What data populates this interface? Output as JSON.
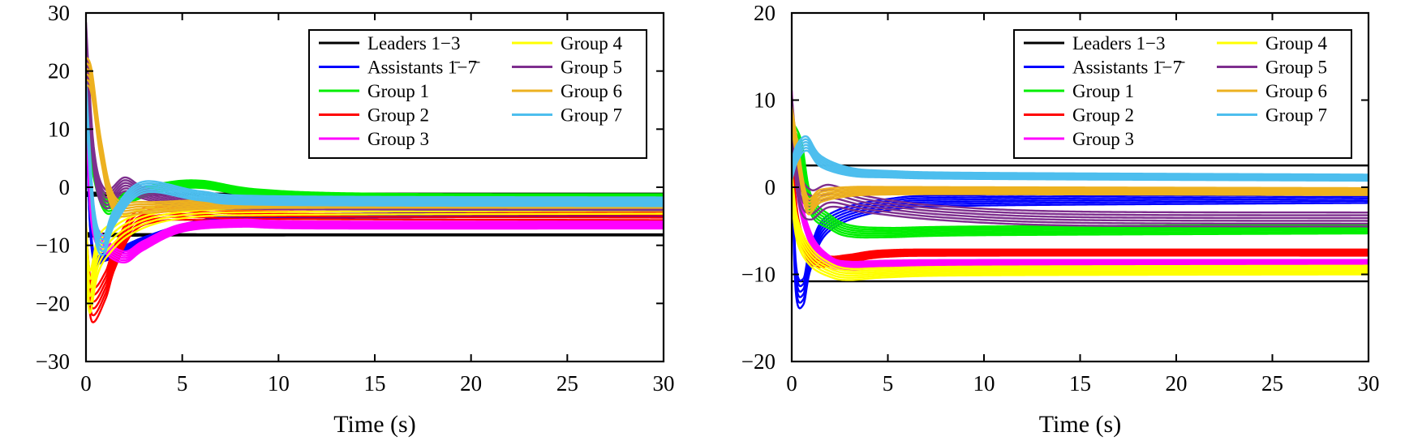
{
  "figure": {
    "panel_count": 2
  },
  "chart_data": [
    {
      "type": "line",
      "title": "",
      "xlabel": "Time (s)",
      "ylabel": "",
      "xlim": [
        0,
        30
      ],
      "ylim": [
        -30,
        30
      ],
      "xticks": [
        "0",
        "5",
        "10",
        "15",
        "20",
        "25",
        "30"
      ],
      "yticks": [
        "30",
        "20",
        "10",
        "0",
        "−10",
        "−20",
        "−30"
      ],
      "grid": false,
      "legend_position": "top-right",
      "legend": [
        {
          "label": "Leaders 1−3",
          "color": "#000000"
        },
        {
          "label": "Assistants 1̄−7̄",
          "color": "#0000ff"
        },
        {
          "label": "Group 1",
          "color": "#00ee00"
        },
        {
          "label": "Group 2",
          "color": "#ff0000"
        },
        {
          "label": "Group 3",
          "color": "#ff00ff"
        },
        {
          "label": "Group 4",
          "color": "#ffff00"
        },
        {
          "label": "Group 5",
          "color": "#7e2f8e"
        },
        {
          "label": "Group 6",
          "color": "#edb120"
        },
        {
          "label": "Group 7",
          "color": "#4dbeee"
        }
      ],
      "series": [
        {
          "name": "Leaders 1−3",
          "color": "#000000",
          "band": 0.2,
          "x": [
            0,
            30,
            30.01
          ],
          "y": [
            -8.2,
            -8.2,
            -8.2
          ]
        },
        {
          "name": "Leaders 1−3",
          "color": "#000000",
          "band": 0.2,
          "x": [
            0,
            30,
            30.01
          ],
          "y": [
            -1.2,
            -1.2,
            -1.2
          ]
        },
        {
          "name": "Assistants 1̄−7̄",
          "color": "#0000ff",
          "band": 0.6,
          "x": [
            0,
            0.3,
            1,
            3,
            6,
            10,
            30
          ],
          "y": [
            15,
            -10,
            -12,
            -9,
            -6,
            -5,
            -4.8
          ]
        },
        {
          "name": "Group 1",
          "color": "#00ee00",
          "band": 1.2,
          "x": [
            0,
            0.3,
            1,
            2,
            4,
            6,
            9,
            15,
            30
          ],
          "y": [
            15,
            5,
            -3,
            -2,
            0,
            0.5,
            -1,
            -1.7,
            -1.8
          ]
        },
        {
          "name": "Group 2",
          "color": "#ff0000",
          "band": 2.2,
          "x": [
            0,
            0.3,
            1,
            1.5,
            2.5,
            4,
            6,
            10,
            30
          ],
          "y": [
            -10,
            -20,
            -17,
            -12,
            -6,
            -4.5,
            -4.5,
            -4.8,
            -5
          ]
        },
        {
          "name": "Group 3",
          "color": "#ff00ff",
          "band": 1.2,
          "x": [
            0,
            0.3,
            1,
            2,
            3,
            5,
            8,
            12,
            30
          ],
          "y": [
            15,
            -5,
            -10,
            -12,
            -10,
            -7,
            -6.2,
            -6.5,
            -6.5
          ]
        },
        {
          "name": "Group 4",
          "color": "#ffff00",
          "band": 2.5,
          "x": [
            0,
            0.2,
            0.6,
            1.2,
            2.5,
            5,
            10,
            30
          ],
          "y": [
            -10,
            -18,
            -12,
            -9,
            -6,
            -4,
            -3.5,
            -3.3
          ]
        },
        {
          "name": "Group 5",
          "color": "#7e2f8e",
          "band": 1.5,
          "x": [
            0,
            0.4,
            1,
            2,
            3,
            5,
            10,
            30
          ],
          "y": [
            26,
            5,
            -2,
            0.5,
            -1,
            -2.5,
            -3,
            -3.2
          ]
        },
        {
          "name": "Group 6",
          "color": "#edb120",
          "band": 1.5,
          "x": [
            0,
            0.3,
            0.8,
            1.5,
            3,
            6,
            10,
            30
          ],
          "y": [
            20,
            18,
            6,
            -3,
            -3.5,
            -3,
            -2.8,
            -2.8
          ]
        },
        {
          "name": "Group 7",
          "color": "#4dbeee",
          "band": 1.5,
          "x": [
            0,
            0.4,
            0.9,
            1.5,
            3,
            6,
            10,
            30
          ],
          "y": [
            16,
            -5,
            -10,
            -5,
            0,
            -1.5,
            -2.3,
            -2.5
          ]
        }
      ]
    },
    {
      "type": "line",
      "title": "",
      "xlabel": "Time (s)",
      "ylabel": "",
      "xlim": [
        0,
        30
      ],
      "ylim": [
        -20,
        20
      ],
      "xticks": [
        "0",
        "5",
        "10",
        "15",
        "20",
        "25",
        "30"
      ],
      "yticks": [
        "20",
        "10",
        "0",
        "−10",
        "−20"
      ],
      "grid": false,
      "legend_position": "top-right",
      "legend": [
        {
          "label": "Leaders 1−3",
          "color": "#000000"
        },
        {
          "label": "Assistants 1̄−7̄",
          "color": "#0000ff"
        },
        {
          "label": "Group 1",
          "color": "#00ee00"
        },
        {
          "label": "Group 2",
          "color": "#ff0000"
        },
        {
          "label": "Group 3",
          "color": "#ff00ff"
        },
        {
          "label": "Group 4",
          "color": "#ffff00"
        },
        {
          "label": "Group 5",
          "color": "#7e2f8e"
        },
        {
          "label": "Group 6",
          "color": "#edb120"
        },
        {
          "label": "Group 7",
          "color": "#4dbeee"
        }
      ],
      "series": [
        {
          "name": "Leaders 1−3",
          "color": "#000000",
          "band": 0.1,
          "x": [
            0,
            30,
            30.01
          ],
          "y": [
            2.5,
            2.5,
            2.5
          ]
        },
        {
          "name": "Leaders 1−3",
          "color": "#000000",
          "band": 0.1,
          "x": [
            0,
            30,
            30.01
          ],
          "y": [
            -10.8,
            -10.8,
            -10.8
          ]
        },
        {
          "name": "Assistants 1̄−7̄",
          "color": "#0000ff",
          "band": 1.2,
          "x": [
            0,
            0.2,
            0.6,
            1,
            2,
            5,
            10,
            30
          ],
          "y": [
            6,
            -10,
            -12,
            -8,
            -4,
            -2,
            -1.5,
            -1.2
          ]
        },
        {
          "name": "Group 1",
          "color": "#00ee00",
          "band": 1.0,
          "x": [
            0,
            0.5,
            1,
            2,
            3,
            5,
            10,
            30
          ],
          "y": [
            6,
            4,
            -2,
            -4,
            -5,
            -5.2,
            -5,
            -4.8
          ]
        },
        {
          "name": "Group 2",
          "color": "#ff0000",
          "band": 0.7,
          "x": [
            0,
            0.3,
            1,
            2,
            3,
            5,
            10,
            30
          ],
          "y": [
            5,
            -4,
            -8,
            -8.5,
            -8.2,
            -7.6,
            -7.5,
            -7.5
          ]
        },
        {
          "name": "Group 3",
          "color": "#ff00ff",
          "band": 0.7,
          "x": [
            0,
            0.3,
            1,
            2,
            3,
            5,
            10,
            30
          ],
          "y": [
            10,
            0,
            -6,
            -8.5,
            -9,
            -8.8,
            -8.7,
            -8.7
          ]
        },
        {
          "name": "Group 4",
          "color": "#ffff00",
          "band": 1.0,
          "x": [
            0,
            0.3,
            1,
            2,
            3,
            5,
            10,
            30
          ],
          "y": [
            0,
            -5,
            -8,
            -9.5,
            -10,
            -9.8,
            -9.6,
            -9.5
          ]
        },
        {
          "name": "Group 5",
          "color": "#7e2f8e",
          "band": 1.6,
          "x": [
            0,
            0.4,
            1,
            2,
            4,
            8,
            15,
            30
          ],
          "y": [
            8,
            0,
            -2,
            -1,
            -2,
            -3,
            -3.6,
            -3.7
          ]
        },
        {
          "name": "Group 6",
          "color": "#edb120",
          "band": 0.8,
          "x": [
            0,
            0.3,
            0.8,
            1.5,
            3,
            5,
            10,
            30
          ],
          "y": [
            8,
            4,
            -2,
            -1,
            -0.5,
            -0.4,
            -0.4,
            -0.5
          ]
        },
        {
          "name": "Group 7",
          "color": "#4dbeee",
          "band": 0.7,
          "x": [
            0,
            0.3,
            0.8,
            1.5,
            3,
            5,
            10,
            30
          ],
          "y": [
            2,
            4,
            5,
            3,
            1.8,
            1.5,
            1.3,
            1.1
          ]
        }
      ]
    }
  ]
}
